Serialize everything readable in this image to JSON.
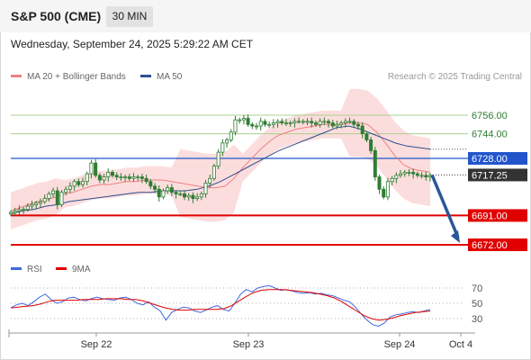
{
  "header": {
    "title": "S&P 500 (CME)",
    "timeframe": "30 MIN",
    "timestamp": "Wednesday, September 24, 2025 5:29:22 AM CET",
    "copyright": "Research © 2025 Trading Central"
  },
  "legend": {
    "ma20_label": "MA 20 + Bollinger Bands",
    "ma50_label": "MA 50",
    "rsi_label": "RSI",
    "rsi9_label": "9MA"
  },
  "colors": {
    "ma20": "#f08080",
    "bollinger_fill": "#fbd5d5",
    "ma50": "#2f4f8f",
    "candle": "#2e7d32",
    "resistance_green": "#a8d08d",
    "current_line": "#2255cc",
    "support_red": "#e00000",
    "rsi": "#4169e1",
    "rsi_ma": "#e00000",
    "arrow": "#2b5797"
  },
  "chart_data": [
    {
      "type": "candlestick",
      "title": "S&P 500 (CME)",
      "x_ticks": [
        "Sep 22",
        "Sep 23",
        "Sep 24",
        "Oct 4"
      ],
      "ylim": [
        6660,
        6780
      ],
      "levels": [
        {
          "label": "6756.00",
          "value": 6756.0,
          "kind": "resistance"
        },
        {
          "label": "6744.00",
          "value": 6744.0,
          "kind": "resistance"
        },
        {
          "label": "6728.00",
          "value": 6728.0,
          "kind": "pivot"
        },
        {
          "label": "6717.25",
          "value": 6717.25,
          "kind": "last_price"
        },
        {
          "label": "6691.00",
          "value": 6691.0,
          "kind": "support"
        },
        {
          "label": "6672.00",
          "value": 6672.0,
          "kind": "support"
        }
      ],
      "close": [
        6693,
        6694,
        6695,
        6695,
        6697,
        6698,
        6699,
        6700,
        6702,
        6705,
        6707,
        6698,
        6706,
        6708,
        6710,
        6713,
        6711,
        6713,
        6718,
        6725,
        6717,
        6714,
        6716,
        6719,
        6717,
        6716,
        6716,
        6716,
        6715,
        6716,
        6716,
        6715,
        6713,
        6710,
        6708,
        6703,
        6707,
        6709,
        6706,
        6705,
        6705,
        6703,
        6704,
        6702,
        6703,
        6705,
        6712,
        6715,
        6723,
        6732,
        6738,
        6740,
        6745,
        6753,
        6753,
        6754,
        6750,
        6749,
        6749,
        6752,
        6750,
        6750,
        6751,
        6752,
        6751,
        6751,
        6751,
        6752,
        6752,
        6752,
        6752,
        6751,
        6750,
        6752,
        6752,
        6751,
        6749,
        6750,
        6751,
        6752,
        6752,
        6750,
        6749,
        6744,
        6740,
        6733,
        6716,
        6708,
        6703,
        6713,
        6715,
        6717,
        6718,
        6719,
        6719,
        6718,
        6717,
        6717,
        6716,
        6717
      ],
      "ma20": [
        6694,
        6696,
        6698,
        6700,
        6701,
        6703,
        6705,
        6706,
        6708,
        6710,
        6711,
        6711,
        6712,
        6713,
        6713,
        6714,
        6714,
        6714,
        6713,
        6712,
        6711,
        6710,
        6709,
        6709,
        6710,
        6715,
        6722,
        6728,
        6734,
        6739,
        6743,
        6745,
        6747,
        6748,
        6749,
        6750,
        6750,
        6750,
        6751,
        6751,
        6750,
        6745,
        6738,
        6730,
        6724,
        6721,
        6720,
        6719
      ],
      "ma50": [
        6692,
        6694,
        6695,
        6697,
        6698,
        6700,
        6701,
        6702,
        6703,
        6704,
        6705,
        6706,
        6706,
        6707,
        6707,
        6707,
        6708,
        6710,
        6713,
        6717,
        6721,
        6725,
        6729,
        6733,
        6736,
        6739,
        6742,
        6745,
        6748,
        6749,
        6747,
        6744,
        6741,
        6738,
        6736,
        6735,
        6734
      ],
      "projection": {
        "from": 6717.25,
        "to": 6672.0
      }
    },
    {
      "type": "line",
      "title": "RSI",
      "ylim": [
        10,
        90
      ],
      "y_ticks": [
        70,
        50,
        30
      ],
      "series": [
        {
          "name": "RSI",
          "values": [
            44,
            48,
            50,
            47,
            52,
            58,
            62,
            55,
            50,
            52,
            57,
            58,
            55,
            53,
            56,
            58,
            56,
            55,
            54,
            57,
            58,
            55,
            50,
            48,
            52,
            45,
            40,
            28,
            38,
            42,
            45,
            44,
            40,
            38,
            41,
            45,
            47,
            42,
            40,
            50,
            62,
            68,
            65,
            70,
            72,
            73,
            70,
            67,
            68,
            66,
            64,
            63,
            64,
            62,
            63,
            61,
            60,
            57,
            54,
            52,
            45,
            36,
            28,
            22,
            20,
            24,
            32,
            35,
            36,
            38,
            39,
            38,
            40,
            42
          ]
        },
        {
          "name": "9MA",
          "values": [
            44,
            45,
            46,
            47,
            49,
            52,
            54,
            54,
            54,
            54,
            55,
            55,
            55,
            56,
            56,
            56,
            55,
            55,
            53,
            50,
            47,
            44,
            42,
            41,
            41,
            42,
            42,
            42,
            42,
            43,
            47,
            53,
            59,
            64,
            67,
            68,
            68,
            68,
            67,
            66,
            65,
            64,
            62,
            60,
            57,
            52,
            46,
            40,
            34,
            30,
            28,
            29,
            31,
            34,
            36,
            38,
            39,
            40
          ]
        }
      ]
    }
  ]
}
